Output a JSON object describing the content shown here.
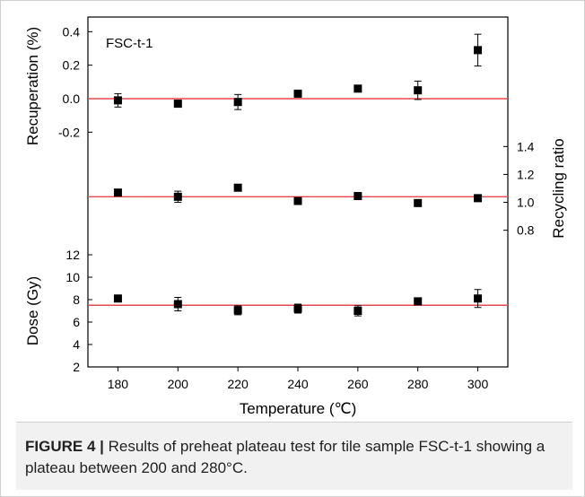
{
  "chart_data": {
    "type": "scatter",
    "sample_label": "FSC-t-1",
    "x": [
      180,
      200,
      220,
      240,
      260,
      280,
      300
    ],
    "xlabel": "Temperature (℃)",
    "xticks": [
      "180",
      "200",
      "220",
      "240",
      "260",
      "280",
      "300"
    ],
    "xlim": [
      170,
      310
    ],
    "panels": [
      {
        "name": "recuperation",
        "ylabel": "Recuperation (%)",
        "axis_side": "left",
        "ylim": [
          -0.3,
          0.45
        ],
        "yticks": [
          "-0.2",
          "0.0",
          "0.2",
          "0.4"
        ],
        "ytick_values": [
          -0.2,
          0.0,
          0.2,
          0.4
        ],
        "values": [
          -0.01,
          -0.03,
          -0.02,
          0.03,
          0.06,
          0.05,
          0.29
        ],
        "errors": [
          0.04,
          0.02,
          0.045,
          0.02,
          0.0,
          0.055,
          0.095
        ],
        "reference_line": 0.0
      },
      {
        "name": "recycling-ratio",
        "ylabel": "Recycling ratio",
        "axis_side": "right",
        "ylim": [
          0.65,
          1.55
        ],
        "yticks": [
          "0.8",
          "1.0",
          "1.2",
          "1.4"
        ],
        "ytick_values": [
          0.8,
          1.0,
          1.2,
          1.4
        ],
        "values": [
          1.07,
          1.04,
          1.105,
          1.01,
          1.045,
          0.995,
          1.03
        ],
        "errors": [
          0.0,
          0.04,
          0.0,
          0.0,
          0.0,
          0.0,
          0.015
        ],
        "reference_line": 1.04
      },
      {
        "name": "dose",
        "ylabel": "Dose (Gy)",
        "axis_side": "left",
        "ylim": [
          2,
          12
        ],
        "yticks": [
          "2",
          "4",
          "6",
          "8",
          "10",
          "12"
        ],
        "ytick_values": [
          2,
          4,
          6,
          8,
          10,
          12
        ],
        "values": [
          8.1,
          7.6,
          7.05,
          7.2,
          7.0,
          7.85,
          8.1
        ],
        "errors": [
          0.0,
          0.6,
          0.4,
          0.4,
          0.45,
          0.0,
          0.8
        ],
        "reference_line": 7.5
      }
    ],
    "marker_color": "#000000",
    "reference_line_color": "#e8484d"
  },
  "caption": {
    "label": "FIGURE 4 |",
    "text": " Results of preheat plateau test for tile sample FSC-t-1 showing a plateau between 200 and 280°C."
  }
}
